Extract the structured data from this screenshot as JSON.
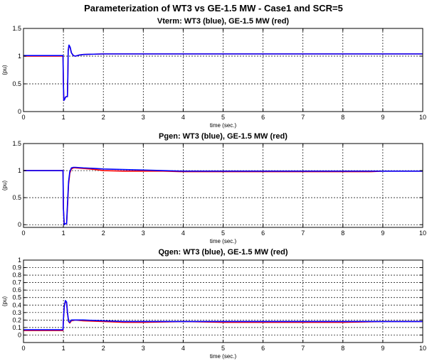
{
  "figure": {
    "title": "Parameterization of WT3 vs GE-1.5 MW - Case1 and SCR=5"
  },
  "colors": {
    "wt3": "#0000ff",
    "ge": "#ff0000",
    "grid": "#000000",
    "axes": "#000000"
  },
  "chart_data": [
    {
      "type": "line",
      "title": "Vterm: WT3 (blue), GE-1.5 MW (red)",
      "xlabel": "time (sec.)",
      "ylabel": "(pu)",
      "xlim": [
        0,
        10
      ],
      "ylim": [
        0,
        1.5
      ],
      "xticks": [
        0,
        1,
        2,
        3,
        4,
        5,
        6,
        7,
        8,
        9,
        10
      ],
      "yticks": [
        0,
        0.5,
        1,
        1.5
      ],
      "xtick_labels": [
        "0",
        "1",
        "2",
        "3",
        "4",
        "5",
        "6",
        "7",
        "8",
        "9",
        "10"
      ],
      "ytick_labels": [
        "0",
        "0.5",
        "1",
        "1.5"
      ],
      "grid": true,
      "series": [
        {
          "color": "#ff0000",
          "x": [
            0,
            0.99,
            1.0,
            1.01,
            1.03,
            1.05,
            1.08,
            1.1,
            1.11,
            1.12,
            1.14,
            1.17,
            1.2,
            1.25,
            1.3,
            1.4,
            1.5,
            2,
            3,
            4,
            5,
            6,
            7,
            8,
            9,
            10
          ],
          "y": [
            1.0,
            1.0,
            0.5,
            0.2,
            0.22,
            0.26,
            0.27,
            0.27,
            0.6,
            1.1,
            1.19,
            1.15,
            1.06,
            1.01,
            1.0,
            1.02,
            1.03,
            1.04,
            1.04,
            1.04,
            1.04,
            1.04,
            1.04,
            1.04,
            1.04,
            1.04
          ]
        },
        {
          "color": "#0000ff",
          "x": [
            0,
            0.99,
            1.0,
            1.01,
            1.03,
            1.05,
            1.08,
            1.1,
            1.11,
            1.12,
            1.14,
            1.17,
            1.2,
            1.25,
            1.3,
            1.4,
            1.5,
            2,
            3,
            4,
            5,
            6,
            7,
            8,
            9,
            10
          ],
          "y": [
            1.01,
            1.01,
            0.5,
            0.2,
            0.22,
            0.26,
            0.27,
            0.27,
            0.6,
            1.1,
            1.2,
            1.16,
            1.06,
            1.01,
            1.0,
            1.02,
            1.03,
            1.04,
            1.04,
            1.04,
            1.04,
            1.04,
            1.04,
            1.04,
            1.04,
            1.04
          ]
        }
      ]
    },
    {
      "type": "line",
      "title": "Pgen: WT3 (blue), GE-1.5 MW (red)",
      "xlabel": "time (sec.)",
      "ylabel": "(pu)",
      "xlim": [
        0,
        10
      ],
      "ylim": [
        -0.05,
        1.5
      ],
      "xticks": [
        0,
        1,
        2,
        3,
        4,
        5,
        6,
        7,
        8,
        9,
        10
      ],
      "yticks": [
        0,
        0.5,
        1,
        1.5
      ],
      "xtick_labels": [
        "0",
        "1",
        "2",
        "3",
        "4",
        "5",
        "6",
        "7",
        "8",
        "9",
        "10"
      ],
      "ytick_labels": [
        "0",
        "0.5",
        "1",
        "1.5"
      ],
      "grid": true,
      "series": [
        {
          "color": "#ff0000",
          "x": [
            0,
            0.99,
            1.0,
            1.02,
            1.05,
            1.08,
            1.1,
            1.13,
            1.16,
            1.2,
            1.25,
            1.3,
            1.5,
            1.8,
            2.0,
            2.5,
            3.0,
            3.5,
            4.0,
            5,
            6,
            7,
            8,
            8.7,
            9,
            10
          ],
          "y": [
            1.0,
            1.0,
            0.3,
            0.0,
            0.02,
            0.02,
            0.3,
            0.75,
            0.95,
            1.03,
            1.05,
            1.05,
            1.04,
            1.02,
            1.0,
            0.99,
            0.99,
            0.99,
            0.98,
            0.98,
            0.98,
            0.98,
            0.98,
            0.98,
            0.99,
            0.99
          ]
        },
        {
          "color": "#0000ff",
          "x": [
            0,
            0.99,
            1.0,
            1.02,
            1.05,
            1.08,
            1.1,
            1.13,
            1.16,
            1.2,
            1.25,
            1.3,
            1.5,
            1.8,
            2.0,
            2.5,
            3.0,
            3.5,
            4.0,
            5,
            6,
            7,
            8,
            9,
            10
          ],
          "y": [
            1.0,
            1.0,
            0.3,
            0.0,
            0.02,
            0.02,
            0.35,
            0.8,
            0.98,
            1.05,
            1.06,
            1.06,
            1.05,
            1.04,
            1.03,
            1.02,
            1.01,
            1.0,
            0.99,
            0.99,
            0.99,
            0.99,
            0.99,
            0.99,
            0.99
          ]
        }
      ]
    },
    {
      "type": "line",
      "title": "Qgen: WT3 (blue), GE-1.5 MW (red)",
      "xlabel": "time (sec.)",
      "ylabel": "(pu)",
      "xlim": [
        0,
        10
      ],
      "ylim": [
        -0.1,
        1.0
      ],
      "xticks": [
        0,
        1,
        2,
        3,
        4,
        5,
        6,
        7,
        8,
        9,
        10
      ],
      "yticks": [
        0,
        0.1,
        0.2,
        0.3,
        0.4,
        0.5,
        0.6,
        0.7,
        0.8,
        0.9,
        1
      ],
      "xtick_labels": [
        "0",
        "1",
        "2",
        "3",
        "4",
        "5",
        "6",
        "7",
        "8",
        "9",
        "10"
      ],
      "ytick_labels": [
        "0",
        "0.1",
        "0.2",
        "0.3",
        "0.4",
        "0.5",
        "0.6",
        "0.7",
        "0.8",
        "0.9",
        "1"
      ],
      "grid": true,
      "series": [
        {
          "color": "#ff0000",
          "x": [
            0,
            0.99,
            1.0,
            1.02,
            1.05,
            1.08,
            1.1,
            1.13,
            1.16,
            1.2,
            1.3,
            1.5,
            2.0,
            2.5,
            3,
            4,
            5,
            6,
            7,
            8,
            9,
            10
          ],
          "y": [
            0.06,
            0.06,
            0.2,
            0.38,
            0.45,
            0.43,
            0.3,
            0.18,
            0.16,
            0.19,
            0.2,
            0.19,
            0.18,
            0.17,
            0.17,
            0.18,
            0.17,
            0.17,
            0.17,
            0.17,
            0.18,
            0.18
          ]
        },
        {
          "color": "#0000ff",
          "x": [
            0,
            0.99,
            1.0,
            1.02,
            1.05,
            1.08,
            1.1,
            1.13,
            1.16,
            1.2,
            1.3,
            1.5,
            2.0,
            2.5,
            3,
            4,
            5,
            6,
            7,
            8,
            9,
            10
          ],
          "y": [
            0.07,
            0.07,
            0.2,
            0.38,
            0.46,
            0.44,
            0.31,
            0.18,
            0.17,
            0.2,
            0.2,
            0.2,
            0.19,
            0.18,
            0.18,
            0.18,
            0.18,
            0.18,
            0.18,
            0.18,
            0.18,
            0.18
          ]
        }
      ]
    }
  ]
}
